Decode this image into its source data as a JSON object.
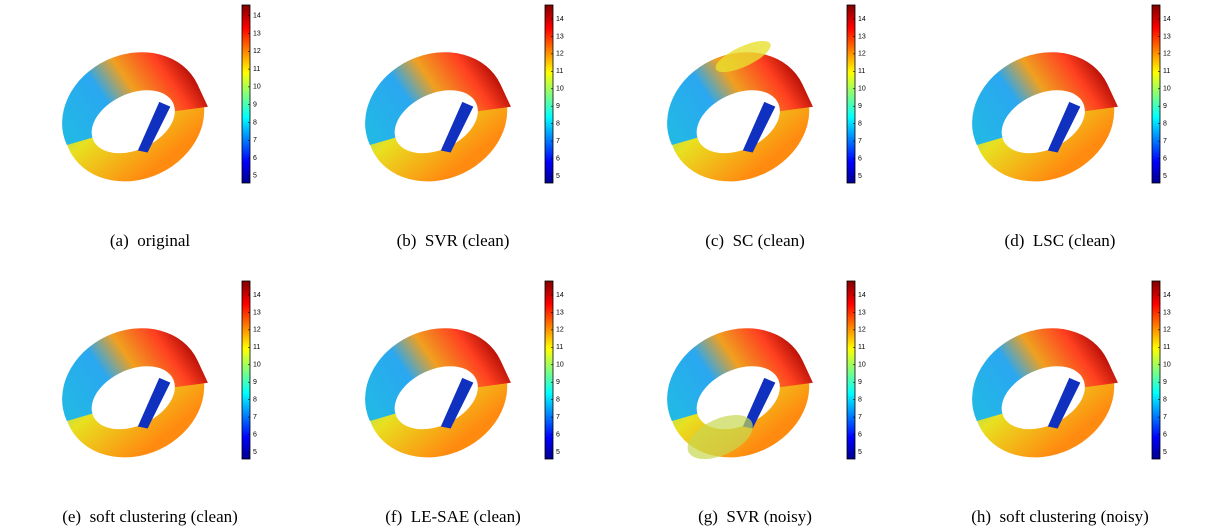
{
  "figures": [
    {
      "caption": "(a)  original",
      "colorbar": {
        "lim": [
          4.6,
          14.6
        ],
        "ticks": [
          5,
          6,
          7,
          8,
          9,
          10,
          11,
          12,
          13,
          14
        ]
      }
    },
    {
      "caption": "(b)  SVR (clean)",
      "colorbar": {
        "lim": [
          4.6,
          14.8
        ],
        "ticks": [
          5,
          6,
          7,
          8,
          9,
          10,
          11,
          12,
          13,
          14
        ]
      }
    },
    {
      "caption": "(c)  SC (clean)",
      "colorbar": {
        "lim": [
          4.6,
          14.8
        ],
        "ticks": [
          5,
          6,
          7,
          8,
          9,
          10,
          11,
          12,
          13,
          14
        ]
      }
    },
    {
      "caption": "(d)  LSC (clean)",
      "colorbar": {
        "lim": [
          4.6,
          14.8
        ],
        "ticks": [
          5,
          6,
          7,
          8,
          9,
          10,
          11,
          12,
          13,
          14
        ]
      }
    },
    {
      "caption": "(e)  soft clustering (clean)",
      "colorbar": {
        "lim": [
          4.6,
          14.8
        ],
        "ticks": [
          5,
          6,
          7,
          8,
          9,
          10,
          11,
          12,
          13,
          14
        ]
      }
    },
    {
      "caption": "(f)  LE-SAE (clean)",
      "colorbar": {
        "lim": [
          4.6,
          14.8
        ],
        "ticks": [
          5,
          6,
          7,
          8,
          9,
          10,
          11,
          12,
          13,
          14
        ]
      }
    },
    {
      "caption": "(g)  SVR (noisy)",
      "colorbar": {
        "lim": [
          4.6,
          14.8
        ],
        "ticks": [
          5,
          6,
          7,
          8,
          9,
          10,
          11,
          12,
          13,
          14
        ]
      }
    },
    {
      "caption": "(h)  soft clustering (noisy)",
      "colorbar": {
        "lim": [
          4.6,
          14.8
        ],
        "ticks": [
          5,
          6,
          7,
          8,
          9,
          10,
          11,
          12,
          13,
          14
        ]
      }
    }
  ]
}
